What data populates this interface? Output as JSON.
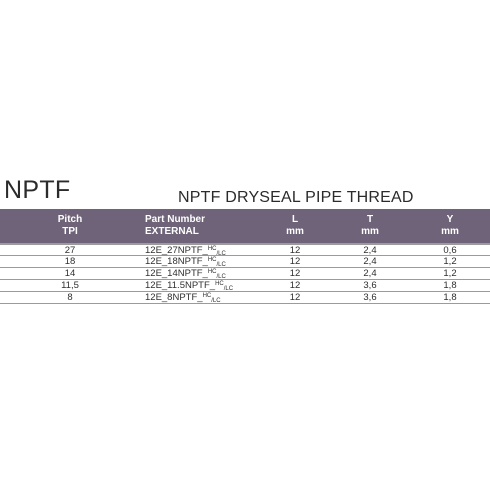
{
  "code_title": "NPTF",
  "caption": "NPTF DRYSEAL PIPE THREAD",
  "headers": {
    "pitch": [
      "Pitch",
      "TPI"
    ],
    "part": [
      "Part Number",
      "EXTERNAL"
    ],
    "l": [
      "L",
      "mm"
    ],
    "t": [
      "T",
      "mm"
    ],
    "y": [
      "Y",
      "mm"
    ]
  },
  "rows": [
    {
      "pitch": "27",
      "part_base": "12E_27NPTF_",
      "part_sup": "HC",
      "part_sub": "/LC",
      "l": "12",
      "t": "2,4",
      "y": "0,6"
    },
    {
      "pitch": "18",
      "part_base": "12E_18NPTF_",
      "part_sup": "HC",
      "part_sub": "/LC",
      "l": "12",
      "t": "2,4",
      "y": "1,2"
    },
    {
      "pitch": "14",
      "part_base": "12E_14NPTF_",
      "part_sup": "HC",
      "part_sub": "/LC",
      "l": "12",
      "t": "2,4",
      "y": "1,2"
    },
    {
      "pitch": "11,5",
      "part_base": "12E_11.5NPTF_",
      "part_sup": "HC",
      "part_sub": "/LC",
      "l": "12",
      "t": "3,6",
      "y": "1,8"
    },
    {
      "pitch": "8",
      "part_base": "12E_8NPTF_",
      "part_sup": "HC",
      "part_sub": "/LC",
      "l": "12",
      "t": "3,6",
      "y": "1,8"
    }
  ],
  "colors": {
    "header_bg": "#6e6378",
    "header_text": "#ffffff",
    "rule": "#9b9b9b"
  }
}
